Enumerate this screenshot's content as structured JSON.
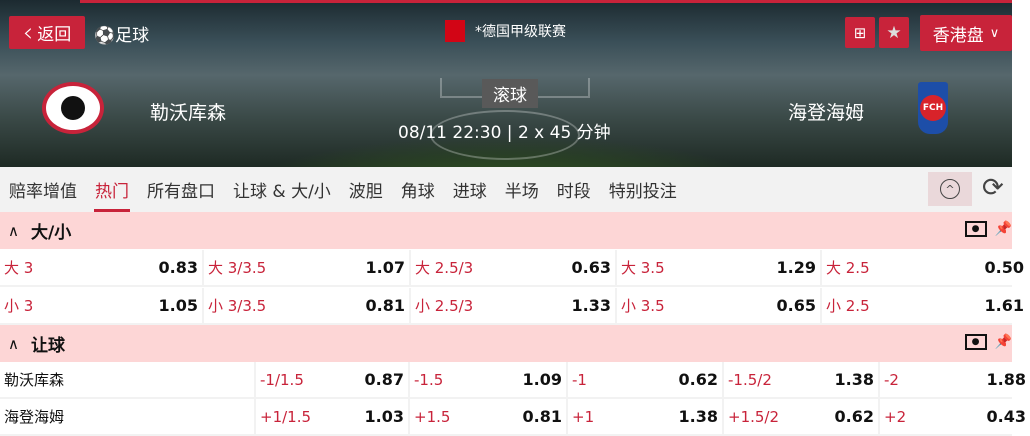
{
  "header": {
    "back_label": "返回",
    "sport": "足球",
    "league": "*德国甲级联赛",
    "odds_type": "香港盘",
    "home": "勒沃库森",
    "away": "海登海姆",
    "status": "滚球",
    "kickoff": "08/11 22:30",
    "duration": "2 x 45 分钟"
  },
  "tabs": [
    {
      "label": "赔率增值"
    },
    {
      "label": "热门",
      "active": true
    },
    {
      "label": "所有盘口"
    },
    {
      "label": "让球 & 大/小"
    },
    {
      "label": "波胆"
    },
    {
      "label": "角球"
    },
    {
      "label": "进球"
    },
    {
      "label": "半场"
    },
    {
      "label": "时段"
    },
    {
      "label": "特别投注"
    }
  ],
  "ou": {
    "title": "大/小",
    "rows": [
      [
        {
          "l": "大 3",
          "v": "0.83"
        },
        {
          "l": "大 3/3.5",
          "v": "1.07"
        },
        {
          "l": "大 2.5/3",
          "v": "0.63"
        },
        {
          "l": "大 3.5",
          "v": "1.29"
        },
        {
          "l": "大 2.5",
          "v": "0.50"
        }
      ],
      [
        {
          "l": "小 3",
          "v": "1.05"
        },
        {
          "l": "小 3/3.5",
          "v": "0.81"
        },
        {
          "l": "小 2.5/3",
          "v": "1.33"
        },
        {
          "l": "小 3.5",
          "v": "0.65"
        },
        {
          "l": "小 2.5",
          "v": "1.61"
        }
      ]
    ]
  },
  "hdp": {
    "title": "让球",
    "rows": [
      {
        "team": "勒沃库森",
        "cells": [
          {
            "l": "-1/1.5",
            "v": "0.87"
          },
          {
            "l": "-1.5",
            "v": "1.09"
          },
          {
            "l": "-1",
            "v": "0.62"
          },
          {
            "l": "-1.5/2",
            "v": "1.38"
          },
          {
            "l": "-2",
            "v": "1.88"
          }
        ]
      },
      {
        "team": "海登海姆",
        "cells": [
          {
            "l": "+1/1.5",
            "v": "1.03"
          },
          {
            "l": "+1.5",
            "v": "0.81"
          },
          {
            "l": "+1",
            "v": "1.38"
          },
          {
            "l": "+1.5/2",
            "v": "0.62"
          },
          {
            "l": "+2",
            "v": "0.43"
          }
        ]
      }
    ]
  },
  "colors": {
    "accent": "#c8233a",
    "section_bg": "#fdd6d6"
  }
}
